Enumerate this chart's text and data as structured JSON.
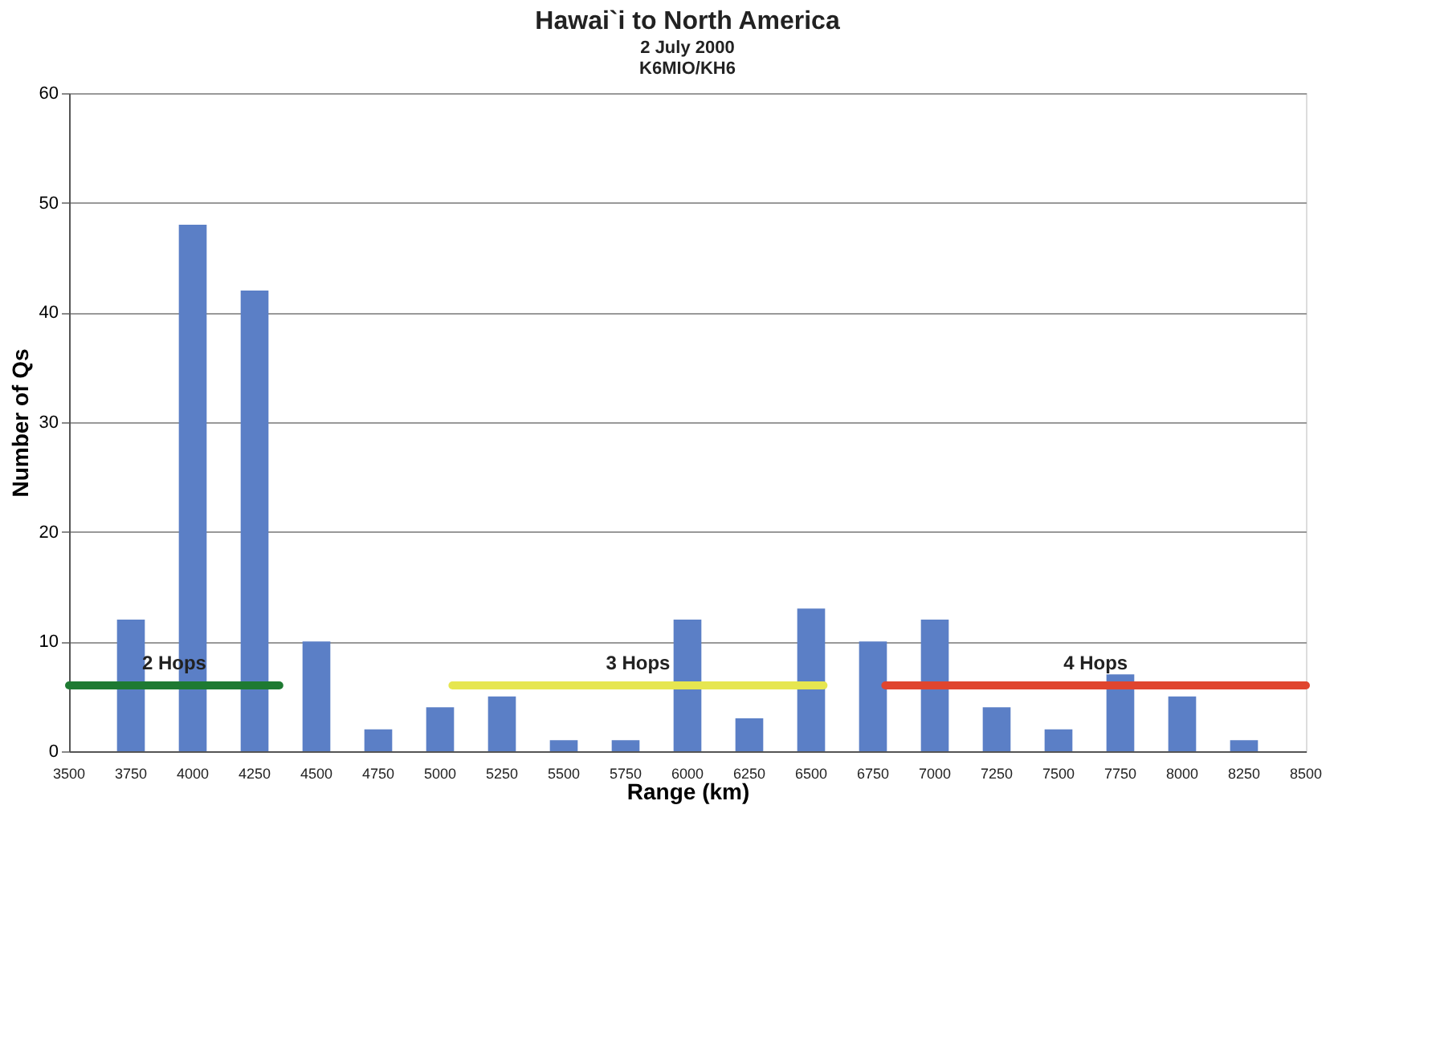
{
  "chart_data": {
    "type": "bar",
    "title": "Hawai`i to North America",
    "subtitle": "2 July 2000\nK6MIO/KH6",
    "xlabel": "Range (km)",
    "ylabel": "Number of Qs",
    "x": [
      3750,
      4000,
      4250,
      4500,
      4750,
      5000,
      5250,
      5500,
      5750,
      6000,
      6250,
      6500,
      6750,
      7000,
      7250,
      7500,
      7750,
      8000,
      8250
    ],
    "xlim": [
      3500,
      8500
    ],
    "xticks": [
      3500,
      3750,
      4000,
      4250,
      4500,
      4750,
      5000,
      5250,
      5500,
      5750,
      6000,
      6250,
      6500,
      6750,
      7000,
      7250,
      7500,
      7750,
      8000,
      8250,
      8500
    ],
    "ylim": [
      0,
      60
    ],
    "yticks": [
      0,
      10,
      20,
      30,
      40,
      50,
      60
    ],
    "grid": "y",
    "series": [
      {
        "color": "#5b7fc6",
        "values": [
          12,
          48,
          42,
          10,
          2,
          4,
          5,
          1,
          1,
          12,
          3,
          13,
          10,
          12,
          4,
          2,
          7,
          5,
          1
        ]
      },
      {
        "type": "line",
        "name": "2 Hops",
        "color": "#1e7a32",
        "x": [
          3500,
          4350
        ],
        "values": [
          6,
          6
        ]
      },
      {
        "type": "line",
        "name": "3 Hops",
        "color": "#e6e650",
        "x": [
          5050,
          6550
        ],
        "values": [
          6,
          6
        ]
      },
      {
        "type": "line",
        "name": "4 Hops",
        "color": "#e0452e",
        "x": [
          6800,
          8500
        ],
        "values": [
          6,
          6
        ]
      }
    ]
  }
}
